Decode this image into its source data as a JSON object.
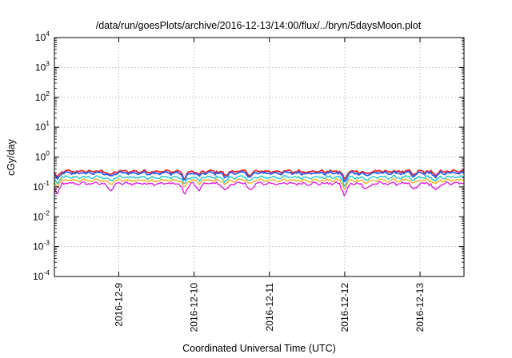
{
  "chart_data": {
    "type": "line",
    "title": "/data/run/goesPlots/archive/2016-12-13/14:00/flux/../bryn/5daysMoon.plot",
    "xlabel": "Coordinated Universal Time (UTC)",
    "ylabel": "cGy/day",
    "y_scale": "log",
    "ylim": [
      0.0001,
      10000
    ],
    "y_ticks": [
      {
        "base": "10",
        "exp": "-4",
        "value": 0.0001
      },
      {
        "base": "10",
        "exp": "-3",
        "value": 0.001
      },
      {
        "base": "10",
        "exp": "-2",
        "value": 0.01
      },
      {
        "base": "10",
        "exp": "-1",
        "value": 0.1
      },
      {
        "base": "10",
        "exp": "0",
        "value": 1
      },
      {
        "base": "10",
        "exp": "1",
        "value": 10
      },
      {
        "base": "10",
        "exp": "2",
        "value": 100
      },
      {
        "base": "10",
        "exp": "3",
        "value": 1000
      },
      {
        "base": "10",
        "exp": "4",
        "value": 10000
      }
    ],
    "xlim": [
      "2016-12-08 03:30",
      "2016-12-13 14:00"
    ],
    "x_ticks": [
      "2016-12-9",
      "2016-12-10",
      "2016-12-11",
      "2016-12-12",
      "2016-12-13"
    ],
    "grid": true,
    "legend": "none",
    "series": [
      {
        "color": "#e8252a",
        "level": 0.33
      },
      {
        "color": "#2b5cf0",
        "level": 0.29
      },
      {
        "color": "#22c4c4",
        "level": 0.21
      },
      {
        "color": "#f0b020",
        "level": 0.165
      },
      {
        "color": "#e020e0",
        "level": 0.13
      }
    ],
    "dips": [
      {
        "time": "2016-12-08 04:30",
        "factor": 0.6
      },
      {
        "time": "2016-12-08 21:30",
        "factor": 0.7
      },
      {
        "time": "2016-12-09 21:00",
        "factor": 0.55
      },
      {
        "time": "2016-12-10 01:30",
        "factor": 0.75
      },
      {
        "time": "2016-12-10 10:00",
        "factor": 0.7
      },
      {
        "time": "2016-12-10 18:00",
        "factor": 0.75
      },
      {
        "time": "2016-12-12 00:00",
        "factor": 0.5
      },
      {
        "time": "2016-12-12 07:00",
        "factor": 0.8
      },
      {
        "time": "2016-12-12 22:00",
        "factor": 0.75
      },
      {
        "time": "2016-12-13 05:00",
        "factor": 0.7
      }
    ]
  }
}
